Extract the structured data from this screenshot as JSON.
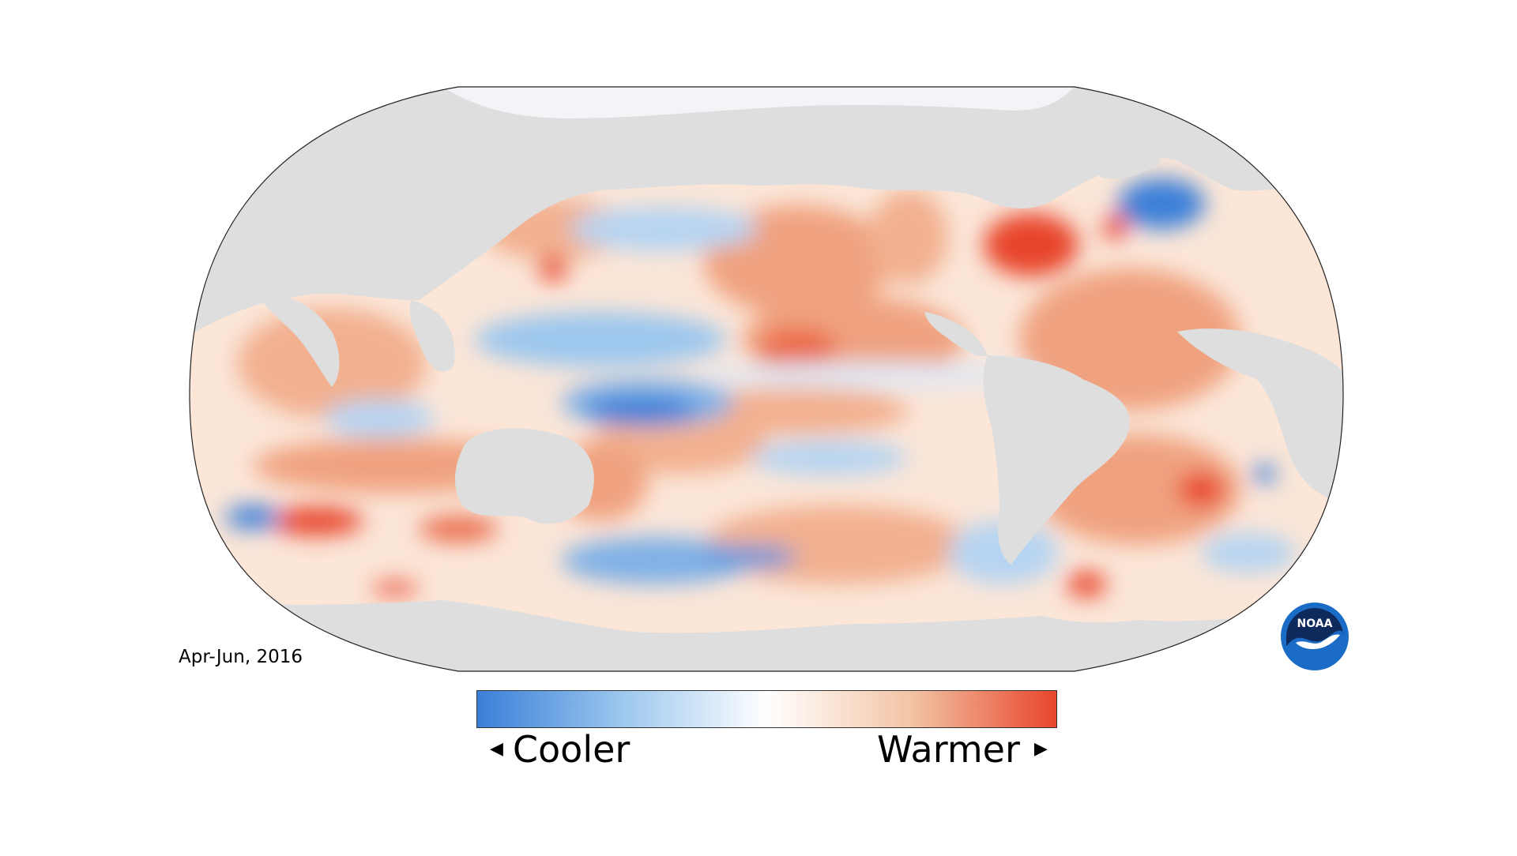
{
  "date_label": "Apr-Jun, 2016",
  "legend": {
    "cooler_label": "Cooler",
    "warmer_label": "Warmer",
    "cooler_arrow": "◀",
    "warmer_arrow": "▶",
    "colors": [
      "#3a7fd8",
      "#9cc7ee",
      "#ffffff",
      "#f2c4a4",
      "#e8452c"
    ]
  },
  "logo": {
    "text": "NOAA"
  },
  "colors": {
    "land": "#dedede",
    "ocean_neutral": "#fbe6d8",
    "warm": "#ea6a48",
    "hot": "#e8452c",
    "cool": "#9cc7ee",
    "cold": "#3a7fd8",
    "logo_blue": "#1a6cc6",
    "logo_navy": "#0e2a5c"
  }
}
